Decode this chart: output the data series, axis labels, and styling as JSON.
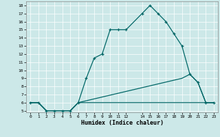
{
  "xlabel": "Humidex (Indice chaleur)",
  "bg_color": "#cce8e8",
  "line_color": "#006666",
  "grid_color": "#ffffff",
  "xlim": [
    -0.5,
    23.5
  ],
  "ylim": [
    4.8,
    18.5
  ],
  "xticks": [
    0,
    1,
    2,
    3,
    4,
    5,
    6,
    7,
    8,
    9,
    10,
    11,
    12,
    14,
    15,
    16,
    17,
    18,
    19,
    20,
    21,
    22,
    23
  ],
  "yticks": [
    5,
    6,
    7,
    8,
    9,
    10,
    11,
    12,
    13,
    14,
    15,
    16,
    17,
    18
  ],
  "line_main": {
    "x": [
      0,
      1,
      2,
      3,
      4,
      5,
      6,
      7,
      8,
      9,
      10,
      11,
      12,
      14,
      15,
      16,
      17,
      18,
      19,
      20,
      21,
      22,
      23
    ],
    "y": [
      6,
      6,
      5,
      5,
      5,
      5,
      6,
      9,
      11.5,
      12,
      15,
      15,
      15,
      17,
      18,
      17,
      16,
      14.5,
      13,
      9.5,
      8.5,
      6,
      6
    ]
  },
  "line_low": {
    "x": [
      0,
      1,
      2,
      3,
      4,
      5,
      6,
      23
    ],
    "y": [
      6,
      6,
      5,
      5,
      5,
      5,
      6,
      6
    ]
  },
  "line_mid": {
    "x": [
      0,
      1,
      2,
      3,
      4,
      5,
      6,
      19,
      20,
      21,
      22,
      23
    ],
    "y": [
      6,
      6,
      5,
      5,
      5,
      5,
      6,
      9,
      9.5,
      8.5,
      6,
      6
    ]
  }
}
